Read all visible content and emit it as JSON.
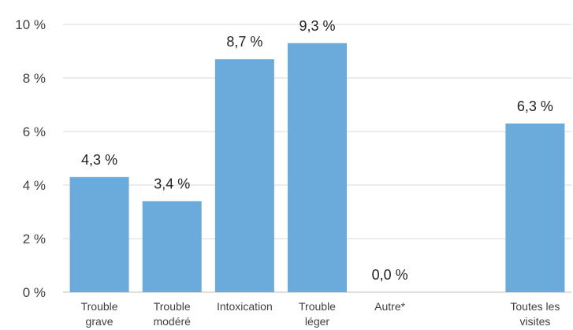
{
  "chart_data": {
    "type": "bar",
    "categories": [
      [
        "Trouble",
        "grave"
      ],
      [
        "Trouble",
        "modéré"
      ],
      [
        "Intoxication"
      ],
      [
        "Trouble",
        "léger"
      ],
      [
        "Autre*"
      ],
      [],
      [
        "Toutes les",
        "visites"
      ]
    ],
    "values": [
      4.3,
      3.4,
      8.7,
      9.3,
      0.0,
      null,
      6.3
    ],
    "data_labels": [
      "4,3 %",
      "3,4 %",
      "8,7 %",
      "9,3 %",
      "0,0 %",
      "",
      "6,3 %"
    ],
    "y_ticks": [
      {
        "value": 0,
        "label": "0 %"
      },
      {
        "value": 2,
        "label": "2 %"
      },
      {
        "value": 4,
        "label": "4 %"
      },
      {
        "value": 6,
        "label": "6 %"
      },
      {
        "value": 8,
        "label": "8 %"
      },
      {
        "value": 10,
        "label": "10 %"
      }
    ],
    "ylim": [
      0,
      10
    ],
    "grid": true,
    "bar_color": "#6aabdb",
    "legend": "none"
  }
}
